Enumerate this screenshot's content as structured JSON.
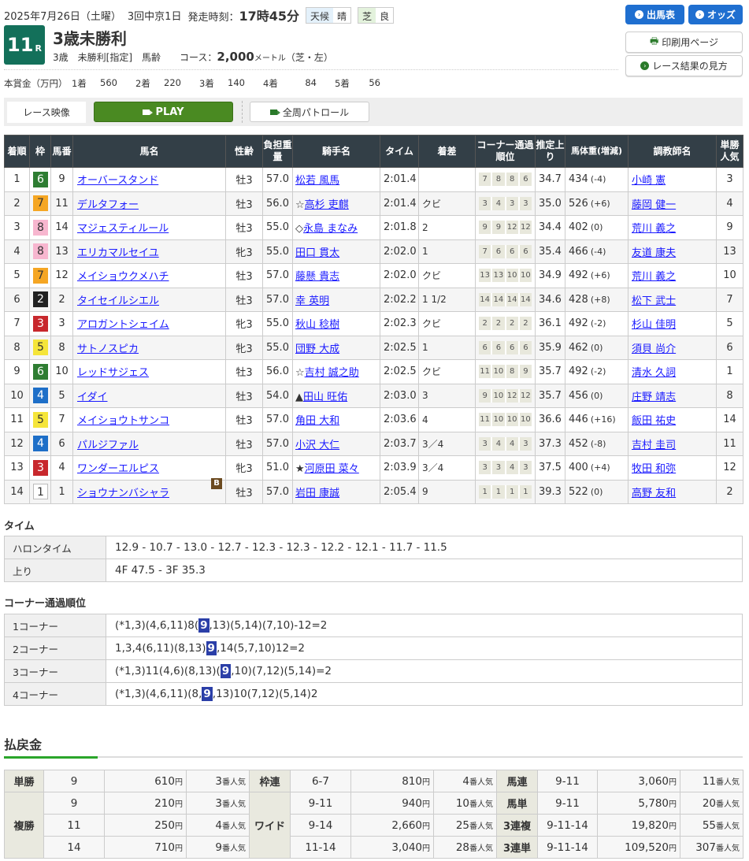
{
  "header": {
    "date": "2025年7月26日（土曜）",
    "meeting": "3回中京1日",
    "start_label": "発走時刻：",
    "start_time": "17時45分",
    "weather_label": "天候",
    "weather": "晴",
    "track_label": "芝",
    "track_cond": "良",
    "race_no": "11",
    "race_suffix": "R",
    "race_name": "3歳未勝利",
    "cond": "3歳　未勝利[指定]　馬齢",
    "course_label": "コース：",
    "distance": "2,000",
    "distance_unit": "メートル",
    "course_detail": "（芝・左）"
  },
  "prize": {
    "label": "本賞金（万円）",
    "items": [
      {
        "place": "1着",
        "value": "560"
      },
      {
        "place": "2着",
        "value": "220"
      },
      {
        "place": "3着",
        "value": "140"
      },
      {
        "place": "4着",
        "value": "84"
      },
      {
        "place": "5着",
        "value": "56"
      }
    ]
  },
  "buttons": {
    "entries": "出馬表",
    "odds": "オッズ",
    "print": "印刷用ページ",
    "howto": "レース結果の見方"
  },
  "video": {
    "label": "レース映像",
    "play": "PLAY",
    "patrol": "全周パトロール"
  },
  "colors": {
    "accent": "#13705a",
    "blue": "#1f6fd0",
    "play": "#4a8a22",
    "header_bg": "#333f47",
    "highlight": "#2b3fa8"
  },
  "waku_colors": {
    "1": [
      "#ffffff",
      "#333"
    ],
    "2": [
      "#222222",
      "#fff"
    ],
    "3": [
      "#c8282d",
      "#fff"
    ],
    "4": [
      "#1e6fc8",
      "#fff"
    ],
    "5": [
      "#f5e53a",
      "#333"
    ],
    "6": [
      "#2e7d32",
      "#fff"
    ],
    "7": [
      "#f5a623",
      "#333"
    ],
    "8": [
      "#f7b6cf",
      "#333"
    ]
  },
  "table": {
    "headers": [
      "着順",
      "枠",
      "馬番",
      "馬名",
      "性齢",
      "負担重量",
      "騎手名",
      "タイム",
      "着差",
      "コーナー通過順位",
      "推定上り",
      "馬体重(増減)",
      "調教師名",
      "単勝人気"
    ],
    "rows": [
      {
        "pos": "1",
        "waku": "6",
        "num": "9",
        "horse": "オーバースタンド",
        "sex": "牡3",
        "wt": "57.0",
        "jmark": "",
        "jockey": "松若 風馬",
        "time": "2:01.4",
        "margin": "",
        "corner": [
          "7",
          "8",
          "8",
          "6"
        ],
        "last": "34.7",
        "bw": "434",
        "diff": "(-4)",
        "trainer": "小崎 憲",
        "pop": "3"
      },
      {
        "pos": "2",
        "waku": "7",
        "num": "11",
        "horse": "デルタフォー",
        "sex": "牡3",
        "wt": "56.0",
        "jmark": "☆",
        "jockey": "高杉 吏麒",
        "time": "2:01.4",
        "margin": "クビ",
        "corner": [
          "3",
          "4",
          "3",
          "3"
        ],
        "last": "35.0",
        "bw": "526",
        "diff": "(+6)",
        "trainer": "藤岡 健一",
        "pop": "4"
      },
      {
        "pos": "3",
        "waku": "8",
        "num": "14",
        "horse": "マジェスティルール",
        "sex": "牡3",
        "wt": "55.0",
        "jmark": "◇",
        "jockey": "永島 まなみ",
        "time": "2:01.8",
        "margin": "2",
        "corner": [
          "9",
          "9",
          "12",
          "12"
        ],
        "last": "34.4",
        "bw": "402",
        "diff": "(0)",
        "trainer": "荒川 義之",
        "pop": "9"
      },
      {
        "pos": "4",
        "waku": "8",
        "num": "13",
        "horse": "エリカマルセイユ",
        "sex": "牝3",
        "wt": "55.0",
        "jmark": "",
        "jockey": "田口 貫太",
        "time": "2:02.0",
        "margin": "1",
        "corner": [
          "7",
          "6",
          "6",
          "6"
        ],
        "last": "35.4",
        "bw": "466",
        "diff": "(-4)",
        "trainer": "友道 康夫",
        "pop": "13"
      },
      {
        "pos": "5",
        "waku": "7",
        "num": "12",
        "horse": "メイショウクメハチ",
        "sex": "牡3",
        "wt": "57.0",
        "jmark": "",
        "jockey": "藤懸 貴志",
        "time": "2:02.0",
        "margin": "クビ",
        "corner": [
          "13",
          "13",
          "10",
          "10"
        ],
        "last": "34.9",
        "bw": "492",
        "diff": "(+6)",
        "trainer": "荒川 義之",
        "pop": "10"
      },
      {
        "pos": "6",
        "waku": "2",
        "num": "2",
        "horse": "タイセイルシエル",
        "sex": "牡3",
        "wt": "57.0",
        "jmark": "",
        "jockey": "幸 英明",
        "time": "2:02.2",
        "margin": "1 1/2",
        "corner": [
          "14",
          "14",
          "14",
          "14"
        ],
        "last": "34.6",
        "bw": "428",
        "diff": "(+8)",
        "trainer": "松下 武士",
        "pop": "7"
      },
      {
        "pos": "7",
        "waku": "3",
        "num": "3",
        "horse": "アロガントシェイム",
        "sex": "牝3",
        "wt": "55.0",
        "jmark": "",
        "jockey": "秋山 稔樹",
        "time": "2:02.3",
        "margin": "クビ",
        "corner": [
          "2",
          "2",
          "2",
          "2"
        ],
        "last": "36.1",
        "bw": "492",
        "diff": "(-2)",
        "trainer": "杉山 佳明",
        "pop": "5"
      },
      {
        "pos": "8",
        "waku": "5",
        "num": "8",
        "horse": "サトノスピカ",
        "sex": "牝3",
        "wt": "55.0",
        "jmark": "",
        "jockey": "団野 大成",
        "time": "2:02.5",
        "margin": "1",
        "corner": [
          "6",
          "6",
          "6",
          "6"
        ],
        "last": "35.9",
        "bw": "462",
        "diff": "(0)",
        "trainer": "須貝 尚介",
        "pop": "6"
      },
      {
        "pos": "9",
        "waku": "6",
        "num": "10",
        "horse": "レッドサジェス",
        "sex": "牡3",
        "wt": "56.0",
        "jmark": "☆",
        "jockey": "吉村 誠之助",
        "time": "2:02.5",
        "margin": "クビ",
        "corner": [
          "11",
          "10",
          "8",
          "9"
        ],
        "last": "35.7",
        "bw": "492",
        "diff": "(-2)",
        "trainer": "清水 久詞",
        "pop": "1"
      },
      {
        "pos": "10",
        "waku": "4",
        "num": "5",
        "horse": "イダイ",
        "sex": "牡3",
        "wt": "54.0",
        "jmark": "▲",
        "jockey": "田山 旺佑",
        "time": "2:03.0",
        "margin": "3",
        "corner": [
          "9",
          "10",
          "12",
          "12"
        ],
        "last": "35.7",
        "bw": "456",
        "diff": "(0)",
        "trainer": "庄野 靖志",
        "pop": "8"
      },
      {
        "pos": "11",
        "waku": "5",
        "num": "7",
        "horse": "メイショウトサンコ",
        "sex": "牡3",
        "wt": "57.0",
        "jmark": "",
        "jockey": "角田 大和",
        "time": "2:03.6",
        "margin": "4",
        "corner": [
          "11",
          "10",
          "10",
          "10"
        ],
        "last": "36.6",
        "bw": "446",
        "diff": "(+16)",
        "trainer": "飯田 祐史",
        "pop": "14"
      },
      {
        "pos": "12",
        "waku": "4",
        "num": "6",
        "horse": "パルジファル",
        "sex": "牡3",
        "wt": "57.0",
        "jmark": "",
        "jockey": "小沢 大仁",
        "time": "2:03.7",
        "margin": "3／4",
        "corner": [
          "3",
          "4",
          "4",
          "3"
        ],
        "last": "37.3",
        "bw": "452",
        "diff": "(-8)",
        "trainer": "吉村 圭司",
        "pop": "11"
      },
      {
        "pos": "13",
        "waku": "3",
        "num": "4",
        "horse": "ワンダーエルピス",
        "sex": "牝3",
        "wt": "51.0",
        "jmark": "★",
        "jockey": "河原田 菜々",
        "time": "2:03.9",
        "margin": "3／4",
        "corner": [
          "3",
          "3",
          "4",
          "3"
        ],
        "last": "37.5",
        "bw": "400",
        "diff": "(+4)",
        "trainer": "牧田 和弥",
        "pop": "12"
      },
      {
        "pos": "14",
        "waku": "1",
        "num": "1",
        "horse": "ショウナンバシャラ",
        "blinker": "B",
        "sex": "牡3",
        "wt": "57.0",
        "jmark": "",
        "jockey": "岩田 康誠",
        "time": "2:05.4",
        "margin": "9",
        "corner": [
          "1",
          "1",
          "1",
          "1"
        ],
        "last": "39.3",
        "bw": "522",
        "diff": "(0)",
        "trainer": "高野 友和",
        "pop": "2"
      }
    ]
  },
  "time": {
    "title": "タイム",
    "rows": [
      {
        "label": "ハロンタイム",
        "value": "12.9 - 10.7 - 13.0 - 12.7 - 12.3 - 12.3 - 12.2 - 12.1 - 11.7 - 11.5"
      },
      {
        "label": "上り",
        "value": "4F 47.5 - 3F 35.3"
      }
    ]
  },
  "corners": {
    "title": "コーナー通過順位",
    "rows": [
      {
        "label": "1コーナー",
        "pre": "(*1,3)(4,6,11)8(",
        "hl": "9",
        "post": ",13)(5,14)(7,10)-12=2"
      },
      {
        "label": "2コーナー",
        "pre": "1,3,4(6,11)(8,13)",
        "hl": "9",
        "post": ",14(5,7,10)12=2"
      },
      {
        "label": "3コーナー",
        "pre": "(*1,3)11(4,6)(8,13)(",
        "hl": "9",
        "post": ",10)(7,12)(5,14)=2"
      },
      {
        "label": "4コーナー",
        "pre": "(*1,3)(4,6,11)(8,",
        "hl": "9",
        "post": ",13)10(7,12)(5,14)2"
      }
    ]
  },
  "payout": {
    "title": "払戻金",
    "yen": "円",
    "pop_suffix": "番人気",
    "groups": [
      [
        {
          "label": "単勝",
          "entries": [
            {
              "n": "9",
              "y": "610",
              "p": "3"
            }
          ]
        },
        {
          "label": "複勝",
          "entries": [
            {
              "n": "9",
              "y": "210",
              "p": "3"
            },
            {
              "n": "11",
              "y": "250",
              "p": "4"
            },
            {
              "n": "14",
              "y": "710",
              "p": "9"
            }
          ]
        }
      ],
      [
        {
          "label": "枠連",
          "entries": [
            {
              "n": "6-7",
              "y": "810",
              "p": "4"
            }
          ]
        },
        {
          "label": "ワイド",
          "entries": [
            {
              "n": "9-11",
              "y": "940",
              "p": "10"
            },
            {
              "n": "9-14",
              "y": "2,660",
              "p": "25"
            },
            {
              "n": "11-14",
              "y": "3,040",
              "p": "28"
            }
          ]
        }
      ],
      [
        {
          "label": "馬連",
          "entries": [
            {
              "n": "9-11",
              "y": "3,060",
              "p": "11"
            }
          ]
        },
        {
          "label": "馬単",
          "entries": [
            {
              "n": "9-11",
              "y": "5,780",
              "p": "20"
            }
          ]
        },
        {
          "label": "3連複",
          "entries": [
            {
              "n": "9-11-14",
              "y": "19,820",
              "p": "55"
            }
          ]
        },
        {
          "label": "3連単",
          "entries": [
            {
              "n": "9-11-14",
              "y": "109,520",
              "p": "307"
            }
          ]
        }
      ]
    ]
  }
}
